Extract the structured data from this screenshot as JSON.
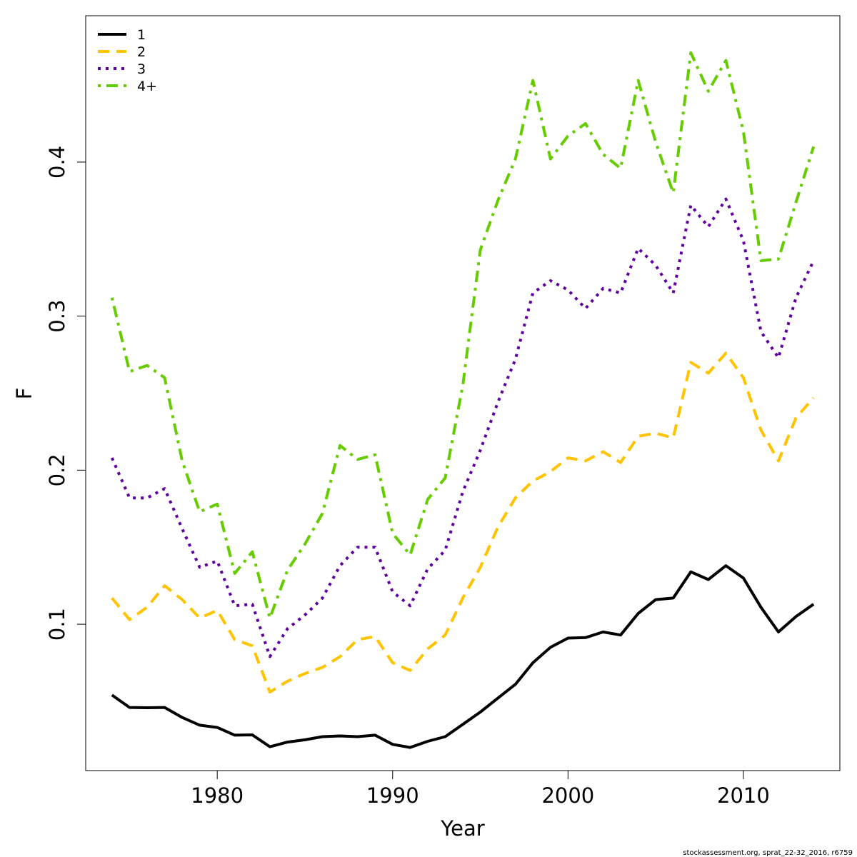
{
  "chart_data": {
    "type": "line",
    "xlabel": "Year",
    "ylabel": "F",
    "xlim": [
      1972.5,
      2015.5
    ],
    "ylim": [
      0.005,
      0.495
    ],
    "x_ticks": [
      1980,
      1990,
      2000,
      2010
    ],
    "x_tick_labels": [
      "1980",
      "1990",
      "2000",
      "2010"
    ],
    "y_ticks": [
      0.1,
      0.2,
      0.3,
      0.4
    ],
    "y_tick_labels": [
      "0.1",
      "0.2",
      "0.3",
      "0.4"
    ],
    "legend_position": "top-left",
    "footer": "stockassessment.org, sprat_22-32_2016, r6759",
    "x": [
      1974,
      1975,
      1976,
      1977,
      1978,
      1979,
      1980,
      1981,
      1982,
      1983,
      1984,
      1985,
      1986,
      1987,
      1988,
      1989,
      1990,
      1991,
      1992,
      1993,
      1994,
      1995,
      1996,
      1997,
      1998,
      1999,
      2000,
      2001,
      2002,
      2003,
      2004,
      2005,
      2006,
      2007,
      2008,
      2009,
      2010,
      2011,
      2012,
      2013,
      2014
    ],
    "series": [
      {
        "name": "1",
        "color": "#000000",
        "dash": "solid",
        "values": [
          0.054,
          0.046,
          0.0458,
          0.046,
          0.0395,
          0.0345,
          0.033,
          0.028,
          0.0282,
          0.0205,
          0.0235,
          0.025,
          0.027,
          0.0275,
          0.027,
          0.028,
          0.022,
          0.02,
          0.024,
          0.027,
          0.035,
          0.043,
          0.052,
          0.061,
          0.075,
          0.085,
          0.091,
          0.0913,
          0.095,
          0.093,
          0.107,
          0.116,
          0.117,
          0.134,
          0.129,
          0.138,
          0.13,
          0.111,
          0.095,
          0.105,
          0.113
        ]
      },
      {
        "name": "2",
        "color": "#FFC300",
        "dash": "dashed",
        "values": [
          0.117,
          0.103,
          0.111,
          0.125,
          0.116,
          0.104,
          0.109,
          0.09,
          0.086,
          0.056,
          0.063,
          0.068,
          0.072,
          0.079,
          0.09,
          0.092,
          0.075,
          0.07,
          0.084,
          0.093,
          0.117,
          0.137,
          0.163,
          0.182,
          0.193,
          0.199,
          0.208,
          0.206,
          0.212,
          0.205,
          0.222,
          0.224,
          0.221,
          0.27,
          0.263,
          0.276,
          0.26,
          0.226,
          0.206,
          0.234,
          0.247
        ]
      },
      {
        "name": "3",
        "color": "#5F00A0",
        "dash": "dotted",
        "values": [
          0.208,
          0.182,
          0.182,
          0.188,
          0.162,
          0.137,
          0.141,
          0.112,
          0.113,
          0.079,
          0.097,
          0.106,
          0.117,
          0.138,
          0.15,
          0.15,
          0.121,
          0.112,
          0.136,
          0.148,
          0.186,
          0.213,
          0.244,
          0.272,
          0.315,
          0.323,
          0.317,
          0.305,
          0.318,
          0.315,
          0.344,
          0.333,
          0.315,
          0.372,
          0.358,
          0.376,
          0.349,
          0.29,
          0.273,
          0.312,
          0.336
        ]
      },
      {
        "name": "4+",
        "color": "#66CC00",
        "dash": "dot-dash",
        "values": [
          0.312,
          0.264,
          0.268,
          0.26,
          0.206,
          0.173,
          0.178,
          0.133,
          0.147,
          0.104,
          0.135,
          0.152,
          0.172,
          0.216,
          0.207,
          0.21,
          0.159,
          0.145,
          0.181,
          0.195,
          0.255,
          0.343,
          0.375,
          0.402,
          0.453,
          0.402,
          0.417,
          0.425,
          0.405,
          0.396,
          0.453,
          0.413,
          0.38,
          0.471,
          0.446,
          0.466,
          0.42,
          0.336,
          0.337,
          0.374,
          0.41
        ]
      }
    ]
  }
}
